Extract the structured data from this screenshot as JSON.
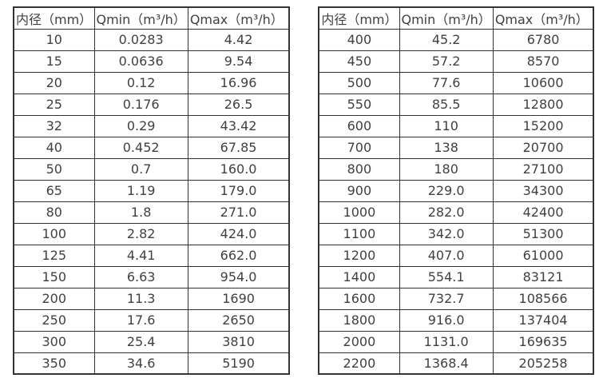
{
  "colors": {
    "background": "#ffffff",
    "border": "#333333",
    "text": "#404040"
  },
  "headers": [
    "内径（mm）",
    "Qmin（m³/h）",
    "Qmax（m³/h）"
  ],
  "tables": {
    "left": {
      "rows": [
        [
          "10",
          "0.0283",
          "4.42"
        ],
        [
          "15",
          "0.0636",
          "9.54"
        ],
        [
          "20",
          "0.12",
          "16.96"
        ],
        [
          "25",
          "0.176",
          "26.5"
        ],
        [
          "32",
          "0.29",
          "43.42"
        ],
        [
          "40",
          "0.452",
          "67.85"
        ],
        [
          "50",
          "0.7",
          "160.0"
        ],
        [
          "65",
          "1.19",
          "179.0"
        ],
        [
          "80",
          "1.8",
          "271.0"
        ],
        [
          "100",
          "2.82",
          "424.0"
        ],
        [
          "125",
          "4.41",
          "662.0"
        ],
        [
          "150",
          "6.63",
          "954.0"
        ],
        [
          "200",
          "11.3",
          "1690"
        ],
        [
          "250",
          "17.6",
          "2650"
        ],
        [
          "300",
          "25.4",
          "3810"
        ],
        [
          "350",
          "34.6",
          "5190"
        ]
      ]
    },
    "right": {
      "rows": [
        [
          "400",
          "45.2",
          "6780"
        ],
        [
          "450",
          "57.2",
          "8570"
        ],
        [
          "500",
          "77.6",
          "10600"
        ],
        [
          "550",
          "85.5",
          "12800"
        ],
        [
          "600",
          "110",
          "15200"
        ],
        [
          "700",
          "138",
          "20700"
        ],
        [
          "800",
          "180",
          "27100"
        ],
        [
          "900",
          "229.0",
          "34300"
        ],
        [
          "1000",
          "282.0",
          "42400"
        ],
        [
          "1100",
          "342.0",
          "51300"
        ],
        [
          "1200",
          "407.0",
          "61000"
        ],
        [
          "1400",
          "554.1",
          "83121"
        ],
        [
          "1600",
          "732.7",
          "108566"
        ],
        [
          "1800",
          "916.0",
          "137404"
        ],
        [
          "2000",
          "1131.0",
          "169635"
        ],
        [
          "2200",
          "1368.4",
          "205258"
        ]
      ]
    }
  }
}
